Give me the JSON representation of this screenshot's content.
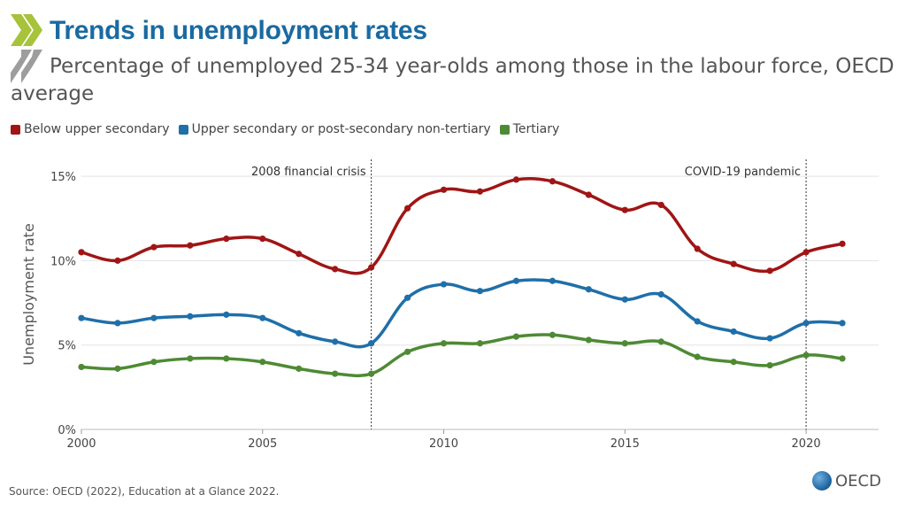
{
  "header": {
    "title": "Trends in unemployment rates",
    "subtitle": "Percentage of unemployed 25-34 year-olds among those in the labour force, OECD average"
  },
  "footer": {
    "source": "Source: OECD (2022), Education at a Glance 2022.",
    "logo_text": "OECD"
  },
  "colors": {
    "title": "#1a6aa0",
    "chevron_green": "#a7c33a",
    "chevron_gray": "#8c8c8c"
  },
  "chart_data": {
    "type": "line",
    "title": "Trends in unemployment rates",
    "xlabel": "",
    "ylabel": "Unemployment rate",
    "x": [
      2000,
      2001,
      2002,
      2003,
      2004,
      2005,
      2006,
      2007,
      2008,
      2009,
      2010,
      2011,
      2012,
      2013,
      2014,
      2015,
      2016,
      2017,
      2018,
      2019,
      2020,
      2021
    ],
    "xlim": [
      2000,
      2022
    ],
    "ylim": [
      0,
      16
    ],
    "x_ticks": [
      2000,
      2005,
      2010,
      2015,
      2020
    ],
    "y_ticks": [
      0,
      5,
      10,
      15
    ],
    "y_tick_labels": [
      "0%",
      "5%",
      "10%",
      "15%"
    ],
    "grid": true,
    "legend_position": "top-left",
    "series": [
      {
        "name": "Below upper secondary",
        "color": "#a01515",
        "values": [
          10.5,
          10.0,
          10.8,
          10.9,
          11.3,
          11.3,
          10.4,
          9.5,
          9.6,
          13.1,
          14.2,
          14.1,
          14.8,
          14.7,
          13.9,
          13.0,
          13.3,
          10.7,
          9.8,
          9.4,
          10.5,
          11.0
        ]
      },
      {
        "name": "Upper secondary or post-secondary non-tertiary",
        "color": "#1f6fa8",
        "values": [
          6.6,
          6.3,
          6.6,
          6.7,
          6.8,
          6.6,
          5.7,
          5.2,
          5.1,
          7.8,
          8.6,
          8.2,
          8.8,
          8.8,
          8.3,
          7.7,
          8.0,
          6.4,
          5.8,
          5.4,
          6.3,
          6.3
        ]
      },
      {
        "name": "Tertiary",
        "color": "#4e8a34",
        "values": [
          3.7,
          3.6,
          4.0,
          4.2,
          4.2,
          4.0,
          3.6,
          3.3,
          3.3,
          4.6,
          5.1,
          5.1,
          5.5,
          5.6,
          5.3,
          5.1,
          5.2,
          4.3,
          4.0,
          3.8,
          4.4,
          4.2
        ]
      }
    ],
    "annotations": [
      {
        "x": 2008,
        "label": "2008 financial crisis"
      },
      {
        "x": 2020,
        "label": "COVID-19 pandemic"
      }
    ]
  }
}
